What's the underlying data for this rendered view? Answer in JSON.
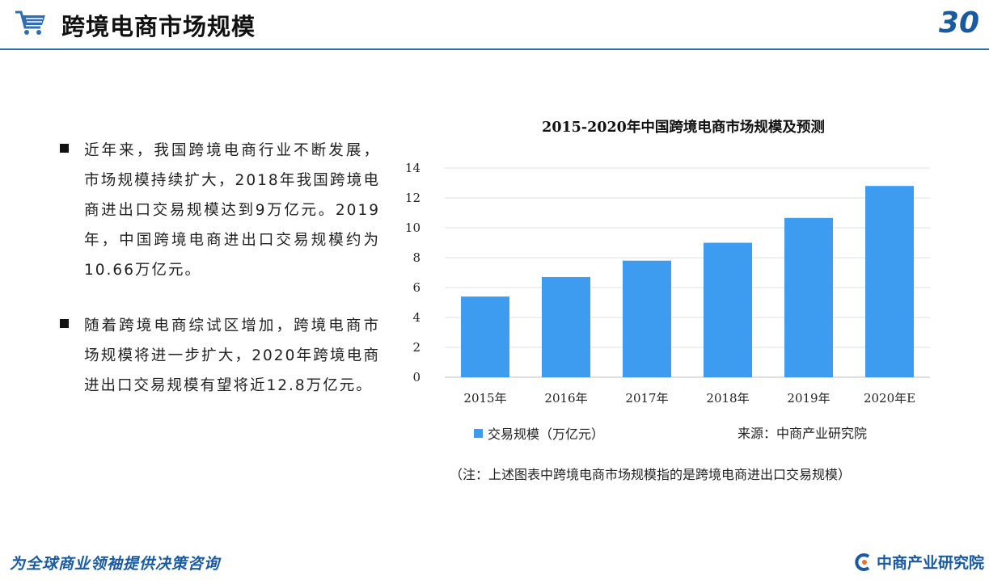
{
  "header": {
    "title": "跨境电商市场规模",
    "page_number": "30"
  },
  "bullets": [
    {
      "text": "近年来，我国跨境电商行业不断发展，市场规模持续扩大，2018年我国跨境电商进出口交易规模达到9万亿元。2019年，中国跨境电商进出口交易规模约为10.66万亿元。"
    },
    {
      "text": "随着跨境电商综试区增加，跨境电商市场规模将进一步扩大，2020年跨境电商进出口交易规模有望将近12.8万亿元。"
    }
  ],
  "chart_data": {
    "type": "bar",
    "title": "2015-2020年中国跨境电商市场规模及预测",
    "categories": [
      "2015年",
      "2016年",
      "2017年",
      "2018年",
      "2019年",
      "2020年E"
    ],
    "series": [
      {
        "name": "交易规模（万亿元）",
        "values": [
          5.4,
          6.7,
          7.8,
          9.0,
          10.66,
          12.8
        ],
        "color": "#3d9bf0"
      }
    ],
    "ylim": [
      0,
      14
    ],
    "yticks": [
      "0",
      "2",
      "4",
      "6",
      "8",
      "10",
      "12",
      "14"
    ],
    "grid": true,
    "legend_position": "bottom-left",
    "source": "来源：中商产业研究院",
    "note": "（注：上述图表中跨境电商市场规模指的是跨境电商进出口交易规模）"
  },
  "footer": {
    "slogan": "为全球商业领袖提供决策咨询",
    "logo_text": "中商产业研究院"
  },
  "colors": {
    "accent": "#1a5aa0",
    "bar": "#3d9bf0"
  },
  "icons": {
    "header": "shopping-cart-icon",
    "footer": "company-logo-icon"
  }
}
